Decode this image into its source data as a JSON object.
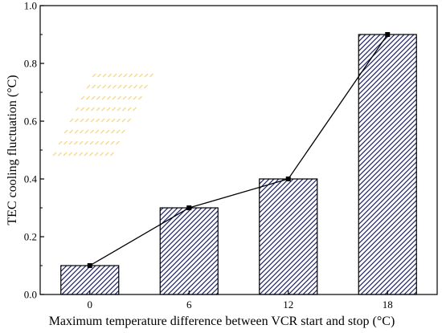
{
  "chart_data": {
    "type": "bar",
    "title": "",
    "xlabel": "Maximum temperature difference between VCR start and stop (°C)",
    "ylabel": "TEC cooling fluctuation (°C)",
    "categories": [
      "0",
      "6",
      "12",
      "18"
    ],
    "values": [
      0.1,
      0.3,
      0.4,
      0.9
    ],
    "ylim": [
      0.0,
      1.0
    ],
    "yticks": [
      "0.0",
      "0.2",
      "0.4",
      "0.6",
      "0.8",
      "1.0"
    ],
    "overlay": {
      "type": "line",
      "values": [
        0.1,
        0.3,
        0.4,
        0.9
      ],
      "marker": "square"
    },
    "bar_fill": "hatched",
    "colors": {
      "bar_hatch": "#1f1f7a",
      "bar_background": "#ffffff",
      "line": "#000000",
      "watermark": "#f3d98a"
    },
    "grid": false,
    "legend": "none"
  }
}
